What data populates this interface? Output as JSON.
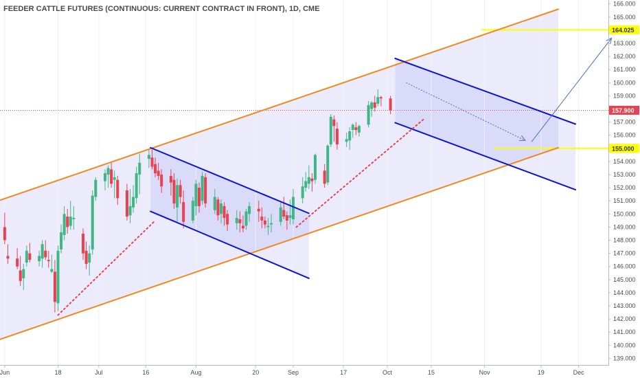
{
  "chart_data": {
    "type": "candlestick",
    "title": "FEEDER CATTLE FUTURES (CONTINUOUS: CURRENT CONTRACT IN FRONT), 1D, CME",
    "ylim": [
      138.5,
      166.3
    ],
    "y_ticks": [
      "139.000",
      "140.000",
      "141.000",
      "142.000",
      "143.000",
      "144.000",
      "145.000",
      "146.000",
      "147.000",
      "148.000",
      "149.000",
      "150.000",
      "151.000",
      "152.000",
      "153.000",
      "154.000",
      "155.000",
      "156.000",
      "157.000",
      "158.000",
      "159.000",
      "160.000",
      "161.000",
      "162.000",
      "163.000",
      "164.000",
      "165.000",
      "166.000"
    ],
    "x_ticks": [
      {
        "label": "Jun",
        "day": 0
      },
      {
        "label": "18",
        "day": 17
      },
      {
        "label": "Jul",
        "day": 30
      },
      {
        "label": "16",
        "day": 45
      },
      {
        "label": "Aug",
        "day": 61
      },
      {
        "label": "20",
        "day": 80
      },
      {
        "label": "Sep",
        "day": 92
      },
      {
        "label": "17",
        "day": 108
      },
      {
        "label": "Oct",
        "day": 122
      },
      {
        "label": "15",
        "day": 136
      },
      {
        "label": "Nov",
        "day": 153
      },
      {
        "label": "19",
        "day": 171
      },
      {
        "label": "Dec",
        "day": 183
      }
    ],
    "x_range_days": [
      -1.5,
      192.5
    ],
    "candles": [
      {
        "d": 0,
        "o": 149.0,
        "h": 150.1,
        "l": 147.7,
        "c": 148.0
      },
      {
        "d": 1,
        "o": 146.8,
        "h": 147.7,
        "l": 146.2,
        "c": 146.6
      },
      {
        "d": 4,
        "o": 146.6,
        "h": 147.4,
        "l": 145.8,
        "c": 146.0
      },
      {
        "d": 5,
        "o": 145.7,
        "h": 146.8,
        "l": 144.5,
        "c": 144.9
      },
      {
        "d": 6,
        "o": 145.1,
        "h": 146.2,
        "l": 144.2,
        "c": 145.8
      },
      {
        "d": 7,
        "o": 146.3,
        "h": 147.6,
        "l": 146.0,
        "c": 147.2
      },
      {
        "d": 8,
        "o": 147.0,
        "h": 147.8,
        "l": 146.3,
        "c": 146.5
      },
      {
        "d": 11,
        "o": 146.4,
        "h": 147.2,
        "l": 146.0,
        "c": 146.8
      },
      {
        "d": 12,
        "o": 146.6,
        "h": 148.0,
        "l": 145.9,
        "c": 147.7
      },
      {
        "d": 13,
        "o": 147.2,
        "h": 148.0,
        "l": 146.5,
        "c": 146.7
      },
      {
        "d": 14,
        "o": 146.5,
        "h": 147.2,
        "l": 145.9,
        "c": 146.4
      },
      {
        "d": 15,
        "o": 145.6,
        "h": 146.9,
        "l": 145.5,
        "c": 145.8
      },
      {
        "d": 16,
        "o": 145.6,
        "h": 146.5,
        "l": 142.5,
        "c": 143.3
      },
      {
        "d": 17,
        "o": 143.2,
        "h": 147.6,
        "l": 142.6,
        "c": 147.2
      },
      {
        "d": 18,
        "o": 147.3,
        "h": 149.2,
        "l": 147.0,
        "c": 148.6
      },
      {
        "d": 19,
        "o": 148.4,
        "h": 150.6,
        "l": 148.0,
        "c": 150.0
      },
      {
        "d": 20,
        "o": 149.8,
        "h": 150.4,
        "l": 148.5,
        "c": 149.0
      },
      {
        "d": 21,
        "o": 149.1,
        "h": 151.0,
        "l": 148.8,
        "c": 149.8
      },
      {
        "d": 22,
        "o": 149.6,
        "h": 150.6,
        "l": 148.8,
        "c": 149.7
      },
      {
        "d": 25,
        "o": 148.5,
        "h": 148.9,
        "l": 146.5,
        "c": 147.0
      },
      {
        "d": 26,
        "o": 147.2,
        "h": 147.9,
        "l": 145.8,
        "c": 146.2
      },
      {
        "d": 27,
        "o": 146.3,
        "h": 147.6,
        "l": 145.3,
        "c": 147.0
      },
      {
        "d": 28,
        "o": 147.3,
        "h": 151.8,
        "l": 146.9,
        "c": 151.4
      },
      {
        "d": 29,
        "o": 151.3,
        "h": 152.8,
        "l": 151.0,
        "c": 152.6
      },
      {
        "d": 32,
        "o": 152.5,
        "h": 153.4,
        "l": 151.8,
        "c": 153.1
      },
      {
        "d": 33,
        "o": 153.0,
        "h": 153.7,
        "l": 152.0,
        "c": 153.5
      },
      {
        "d": 34,
        "o": 153.4,
        "h": 153.9,
        "l": 152.0,
        "c": 152.3
      },
      {
        "d": 35,
        "o": 152.6,
        "h": 153.3,
        "l": 151.2,
        "c": 152.8
      },
      {
        "d": 36,
        "o": 152.6,
        "h": 152.9,
        "l": 150.7,
        "c": 151.2
      },
      {
        "d": 39,
        "o": 151.8,
        "h": 152.3,
        "l": 149.5,
        "c": 149.8
      },
      {
        "d": 40,
        "o": 149.9,
        "h": 151.9,
        "l": 149.3,
        "c": 150.6
      },
      {
        "d": 41,
        "o": 150.5,
        "h": 152.2,
        "l": 150.1,
        "c": 151.3
      },
      {
        "d": 42,
        "o": 151.2,
        "h": 153.6,
        "l": 150.8,
        "c": 153.1
      },
      {
        "d": 43,
        "o": 153.0,
        "h": 154.6,
        "l": 151.5,
        "c": 153.9
      },
      {
        "d": 46,
        "o": 154.2,
        "h": 155.0,
        "l": 153.5,
        "c": 154.5
      },
      {
        "d": 47,
        "o": 154.3,
        "h": 154.9,
        "l": 153.4,
        "c": 153.6
      },
      {
        "d": 48,
        "o": 153.8,
        "h": 154.3,
        "l": 152.8,
        "c": 153.1
      },
      {
        "d": 49,
        "o": 153.3,
        "h": 153.9,
        "l": 152.6,
        "c": 152.9
      },
      {
        "d": 50,
        "o": 153.0,
        "h": 153.4,
        "l": 151.6,
        "c": 152.1
      },
      {
        "d": 53,
        "o": 152.9,
        "h": 153.4,
        "l": 151.4,
        "c": 152.4
      },
      {
        "d": 54,
        "o": 152.6,
        "h": 153.1,
        "l": 150.4,
        "c": 150.8
      },
      {
        "d": 55,
        "o": 150.5,
        "h": 152.7,
        "l": 149.4,
        "c": 152.2
      },
      {
        "d": 56,
        "o": 152.2,
        "h": 152.6,
        "l": 150.8,
        "c": 151.3
      },
      {
        "d": 57,
        "o": 150.9,
        "h": 151.8,
        "l": 148.9,
        "c": 149.4
      },
      {
        "d": 60,
        "o": 149.5,
        "h": 151.3,
        "l": 149.3,
        "c": 151.0
      },
      {
        "d": 61,
        "o": 150.6,
        "h": 152.6,
        "l": 149.9,
        "c": 152.3
      },
      {
        "d": 62,
        "o": 152.0,
        "h": 152.4,
        "l": 150.1,
        "c": 150.6
      },
      {
        "d": 63,
        "o": 151.0,
        "h": 153.2,
        "l": 150.7,
        "c": 152.9
      },
      {
        "d": 64,
        "o": 152.8,
        "h": 153.1,
        "l": 150.5,
        "c": 150.8
      },
      {
        "d": 67,
        "o": 150.3,
        "h": 151.9,
        "l": 150.0,
        "c": 151.3
      },
      {
        "d": 68,
        "o": 151.1,
        "h": 151.3,
        "l": 149.5,
        "c": 149.9
      },
      {
        "d": 69,
        "o": 150.0,
        "h": 151.1,
        "l": 149.3,
        "c": 150.8
      },
      {
        "d": 70,
        "o": 150.6,
        "h": 150.9,
        "l": 149.1,
        "c": 149.7
      },
      {
        "d": 71,
        "o": 150.0,
        "h": 150.3,
        "l": 148.7,
        "c": 149.2
      },
      {
        "d": 74,
        "o": 149.3,
        "h": 150.3,
        "l": 148.8,
        "c": 149.7
      },
      {
        "d": 75,
        "o": 149.6,
        "h": 150.2,
        "l": 148.6,
        "c": 149.3
      },
      {
        "d": 76,
        "o": 149.1,
        "h": 149.9,
        "l": 148.6,
        "c": 148.9
      },
      {
        "d": 77,
        "o": 149.1,
        "h": 150.4,
        "l": 148.8,
        "c": 150.2
      },
      {
        "d": 78,
        "o": 150.0,
        "h": 150.9,
        "l": 149.4,
        "c": 150.6
      },
      {
        "d": 81,
        "o": 150.4,
        "h": 151.0,
        "l": 149.4,
        "c": 150.2
      },
      {
        "d": 82,
        "o": 149.8,
        "h": 150.5,
        "l": 148.9,
        "c": 149.5
      },
      {
        "d": 83,
        "o": 149.5,
        "h": 149.8,
        "l": 148.9,
        "c": 149.2
      },
      {
        "d": 84,
        "o": 149.0,
        "h": 149.7,
        "l": 148.4,
        "c": 149.1
      },
      {
        "d": 85,
        "o": 149.2,
        "h": 150.0,
        "l": 148.6,
        "c": 149.3
      },
      {
        "d": 88,
        "o": 149.4,
        "h": 150.9,
        "l": 149.1,
        "c": 150.5
      },
      {
        "d": 89,
        "o": 150.3,
        "h": 151.3,
        "l": 149.6,
        "c": 149.8
      },
      {
        "d": 90,
        "o": 149.9,
        "h": 150.2,
        "l": 148.8,
        "c": 149.5
      },
      {
        "d": 91,
        "o": 149.7,
        "h": 151.1,
        "l": 149.2,
        "c": 149.9
      },
      {
        "d": 92,
        "o": 149.6,
        "h": 151.9,
        "l": 149.2,
        "c": 151.3
      },
      {
        "d": 95,
        "o": 151.2,
        "h": 152.8,
        "l": 150.8,
        "c": 152.1
      },
      {
        "d": 96,
        "o": 152.0,
        "h": 153.2,
        "l": 151.7,
        "c": 152.5
      },
      {
        "d": 97,
        "o": 152.3,
        "h": 153.7,
        "l": 151.9,
        "c": 152.8
      },
      {
        "d": 98,
        "o": 152.7,
        "h": 153.1,
        "l": 151.7,
        "c": 152.5
      },
      {
        "d": 99,
        "o": 152.6,
        "h": 154.6,
        "l": 152.3,
        "c": 154.5
      },
      {
        "d": 102,
        "o": 153.3,
        "h": 153.8,
        "l": 152.0,
        "c": 152.3
      },
      {
        "d": 103,
        "o": 152.4,
        "h": 155.3,
        "l": 152.2,
        "c": 155.2
      },
      {
        "d": 104,
        "o": 155.3,
        "h": 157.6,
        "l": 155.1,
        "c": 157.4
      },
      {
        "d": 105,
        "o": 157.2,
        "h": 157.5,
        "l": 155.5,
        "c": 156.7
      },
      {
        "d": 106,
        "o": 156.5,
        "h": 157.0,
        "l": 154.9,
        "c": 155.3
      },
      {
        "d": 109,
        "o": 155.5,
        "h": 156.2,
        "l": 155.1,
        "c": 155.7
      },
      {
        "d": 110,
        "o": 155.6,
        "h": 156.6,
        "l": 154.9,
        "c": 156.3
      },
      {
        "d": 111,
        "o": 156.4,
        "h": 156.9,
        "l": 155.8,
        "c": 156.8
      },
      {
        "d": 112,
        "o": 156.6,
        "h": 157.0,
        "l": 156.0,
        "c": 156.4
      },
      {
        "d": 113,
        "o": 156.2,
        "h": 156.8,
        "l": 155.9,
        "c": 156.7
      },
      {
        "d": 116,
        "o": 156.8,
        "h": 158.6,
        "l": 156.6,
        "c": 158.3
      },
      {
        "d": 117,
        "o": 158.0,
        "h": 158.6,
        "l": 157.4,
        "c": 158.5
      },
      {
        "d": 118,
        "o": 158.5,
        "h": 159.0,
        "l": 157.8,
        "c": 158.1
      },
      {
        "d": 119,
        "o": 158.4,
        "h": 159.5,
        "l": 158.2,
        "c": 158.9
      },
      {
        "d": 120,
        "o": 158.9,
        "h": 159.0,
        "l": 158.2,
        "c": 158.8
      },
      {
        "d": 123,
        "o": 158.8,
        "h": 159.0,
        "l": 157.6,
        "c": 157.9
      }
    ],
    "current_price": {
      "label": "157.900",
      "value": 157.9
    },
    "levels": [
      {
        "label": "164.025",
        "value": 164.025,
        "from_day": 152,
        "to_day": 192.5
      },
      {
        "label": "155.000",
        "value": 155.0,
        "from_day": 156,
        "to_day": 192.5
      }
    ],
    "drawings": {
      "main_channel": {
        "upper": {
          "x1": -1.5,
          "y1": 151.05,
          "x2": 176.5,
          "y2": 165.6
        },
        "lower": {
          "x1": -1.5,
          "y1": 140.45,
          "x2": 176.5,
          "y2": 155.05
        },
        "fill_to_day": 176.5
      },
      "mid_channel": {
        "upper": {
          "x1": 46.5,
          "y1": 155.05,
          "x2": 97,
          "y2": 150.05
        },
        "lower": {
          "x1": 46.5,
          "y1": 150.2,
          "x2": 97,
          "y2": 145.1
        },
        "fill_from_day": 46.5,
        "fill_to_day": 97
      },
      "proj_channel": {
        "upper": {
          "x1": 124.5,
          "y1": 161.85,
          "x2": 182,
          "y2": 156.85
        },
        "lower": {
          "x1": 124.5,
          "y1": 156.95,
          "x2": 182,
          "y2": 151.85
        },
        "fill_from_day": 124.5,
        "fill_to_day": 182
      },
      "dotted_lines": [
        {
          "x1": 17,
          "y1": 142.3,
          "x2": 48,
          "y2": 149.5
        },
        {
          "x1": 93,
          "y1": 149.0,
          "x2": 134,
          "y2": 157.3
        }
      ],
      "arrows": [
        {
          "x1": 128,
          "y1": 160.0,
          "x2": 166,
          "y2": 155.6,
          "style": "dotted"
        },
        {
          "x1": 168,
          "y1": 155.5,
          "x2": 193.5,
          "y2": 163.4,
          "style": "solid"
        }
      ]
    },
    "colors": {
      "up": "#3eb785",
      "down": "#e7424f",
      "channel": "#f0891e",
      "inner_channel": "#0a14d6",
      "fill": "rgba(118,118,235,0.15)",
      "level": "#ffff00",
      "current": "#e7424f",
      "arrow": "#4a72c0"
    }
  }
}
